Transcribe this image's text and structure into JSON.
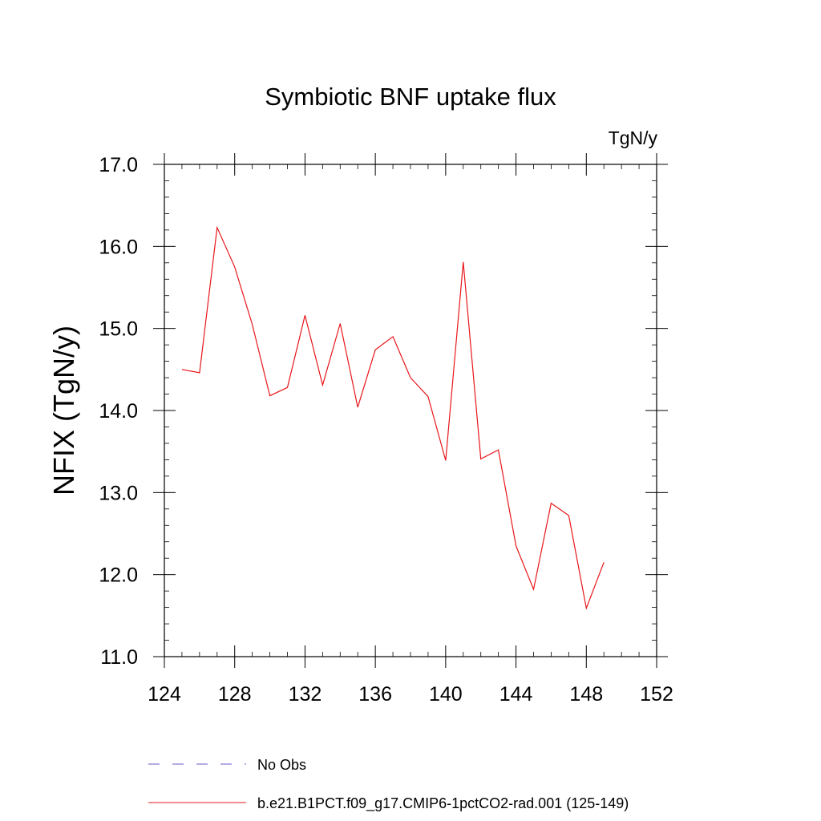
{
  "chart_data": {
    "type": "line",
    "title": "Symbiotic BNF uptake flux",
    "units_label": "TgN/y",
    "ylabel": "NFIX  (TgN/y)",
    "xlabel": "",
    "xlim": [
      124,
      152
    ],
    "ylim": [
      11.0,
      17.0
    ],
    "x_ticks": [
      "124",
      "128",
      "132",
      "136",
      "140",
      "144",
      "148",
      "152"
    ],
    "y_ticks": [
      "11.0",
      "12.0",
      "13.0",
      "14.0",
      "15.0",
      "16.0",
      "17.0"
    ],
    "x_tick_values": [
      124,
      128,
      132,
      136,
      140,
      144,
      148,
      152
    ],
    "y_tick_values": [
      11,
      12,
      13,
      14,
      15,
      16,
      17
    ],
    "grid": false,
    "legend_position": "bottom",
    "series": [
      {
        "name": "No Obs",
        "color": "#6a5acd",
        "style": "dashed",
        "x": [],
        "values": []
      },
      {
        "name": "b.e21.B1PCT.f09_g17.CMIP6-1pctCO2-rad.001 (125-149)",
        "color": "#e8161a",
        "style": "solid",
        "x": [
          125,
          126,
          127,
          128,
          129,
          130,
          131,
          132,
          133,
          134,
          135,
          136,
          137,
          138,
          139,
          140,
          141,
          142,
          143,
          144,
          145,
          146,
          147,
          148,
          149
        ],
        "values": [
          14.5,
          14.46,
          16.23,
          15.75,
          15.05,
          14.18,
          14.28,
          15.16,
          14.31,
          15.06,
          14.04,
          14.74,
          14.9,
          14.4,
          14.17,
          13.39,
          15.81,
          13.41,
          13.52,
          12.35,
          11.82,
          12.87,
          12.72,
          11.59,
          12.15
        ]
      }
    ]
  }
}
